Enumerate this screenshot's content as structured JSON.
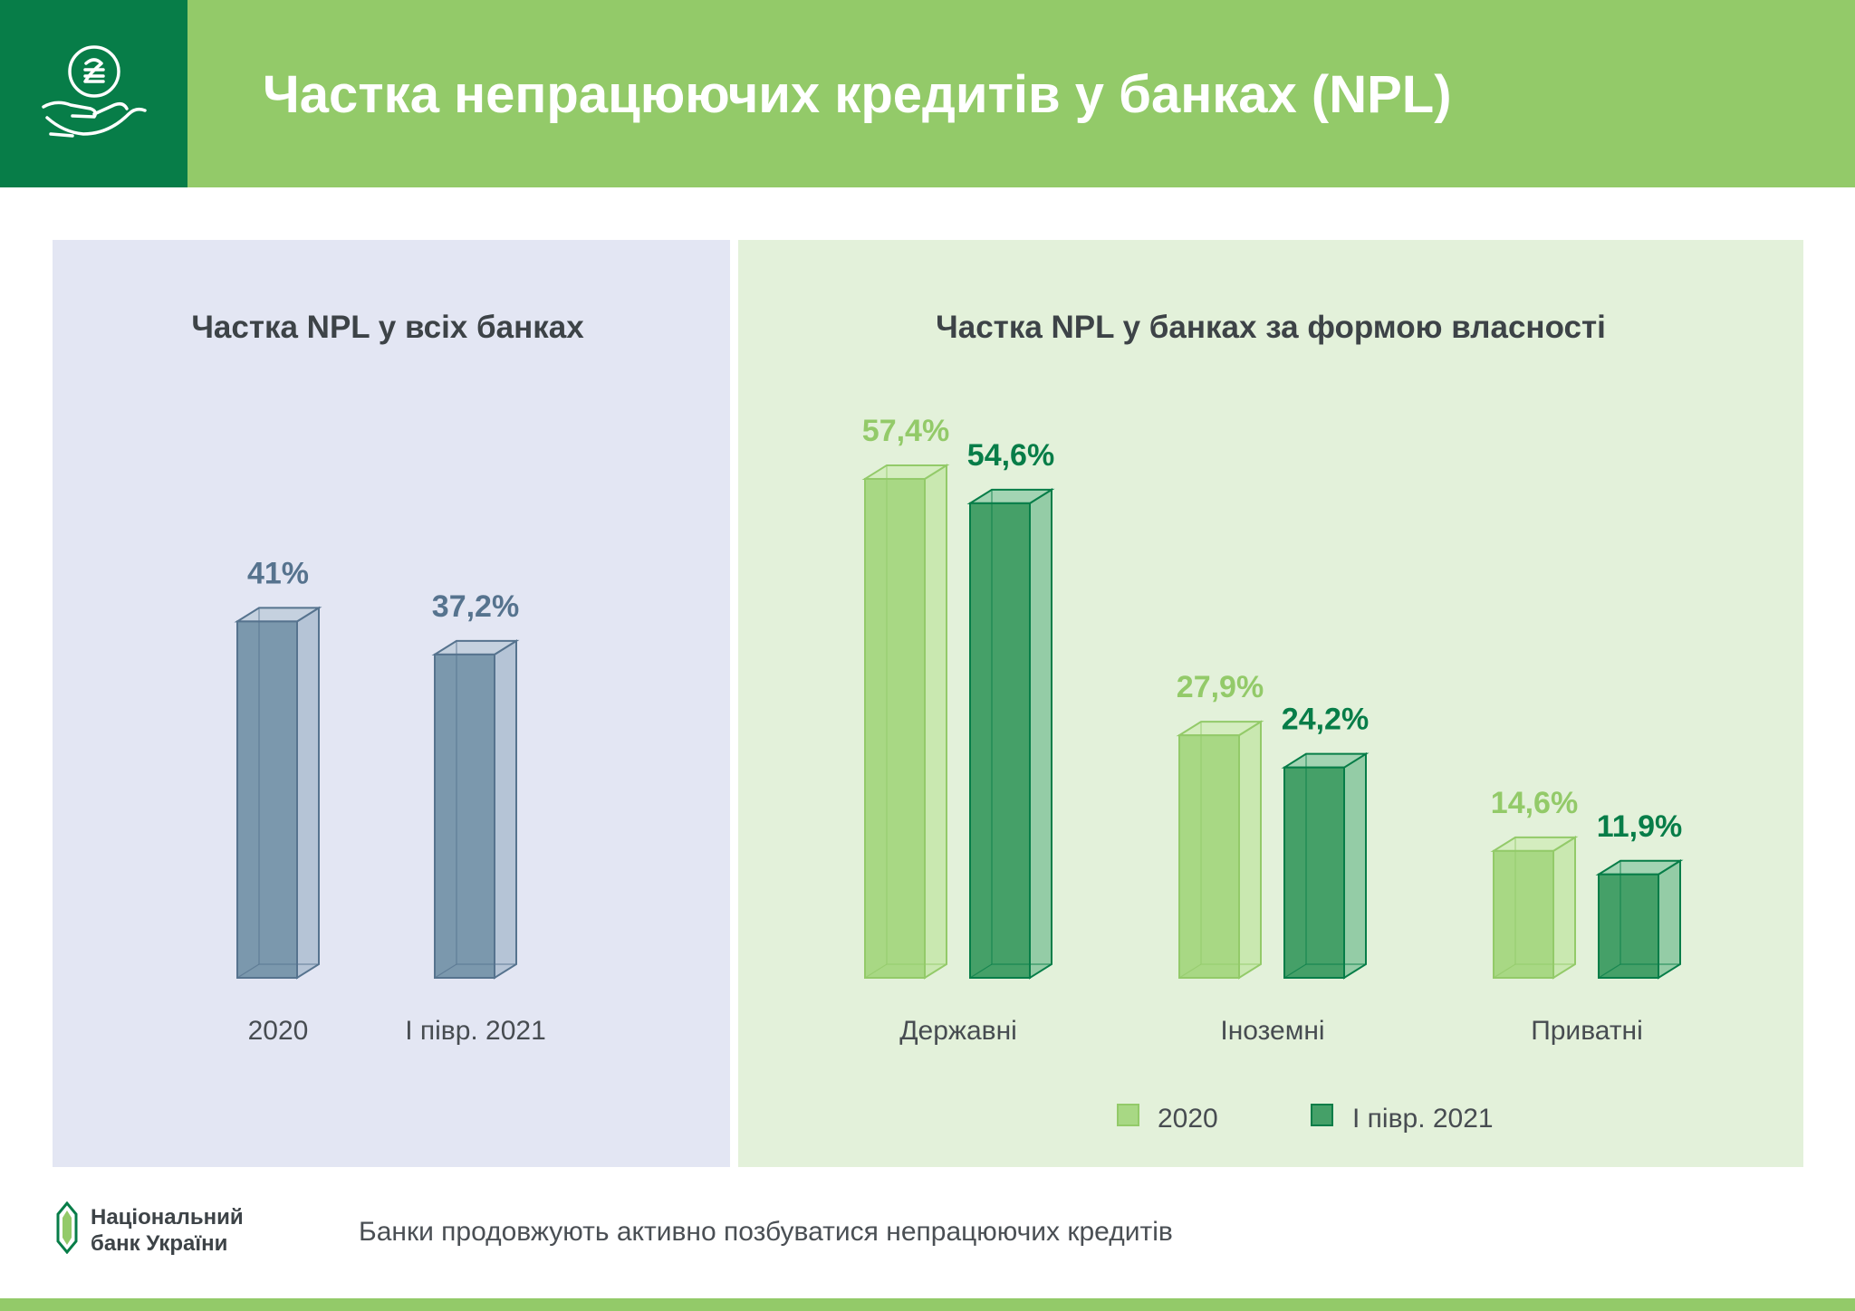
{
  "header": {
    "title": "Частка непрацюючих кредитів у банках (NPL)"
  },
  "icons": {
    "logo_icon": "hand-with-hryvnia-coin-icon",
    "footer_logo_icon": "nbu-banknote-logo-icon"
  },
  "chart_data": [
    {
      "type": "bar",
      "title": "Частка NPL у всіх банках",
      "categories": [
        "2020",
        "І півр. 2021"
      ],
      "values": [
        41,
        37.2
      ],
      "value_labels": [
        "41%",
        "37,2%"
      ],
      "ylim": [
        0,
        60
      ],
      "colors": [
        "#7b98ad"
      ],
      "grid": false
    },
    {
      "type": "bar",
      "title": "Частка NPL у банках за формою власності",
      "categories": [
        "Державні",
        "Іноземні",
        "Приватні"
      ],
      "series": [
        {
          "name": "2020",
          "values": [
            57.4,
            27.9,
            14.6
          ],
          "value_labels": [
            "57,4%",
            "27,9%",
            "14,6%"
          ]
        },
        {
          "name": "І півр. 2021",
          "values": [
            54.6,
            24.2,
            11.9
          ],
          "value_labels": [
            "54,6%",
            "24,2%",
            "11,9%"
          ]
        }
      ],
      "ylim": [
        0,
        60
      ],
      "colors": [
        "#a8d884",
        "#45a068"
      ],
      "label_colors": [
        "#93ca69",
        "#077d48"
      ],
      "legend": "bottom",
      "grid": false
    }
  ],
  "footer": {
    "org_line1": "Національний",
    "org_line2": "банк України",
    "text": "Банки продовжують активно позбуватися непрацюючих кредитів"
  }
}
